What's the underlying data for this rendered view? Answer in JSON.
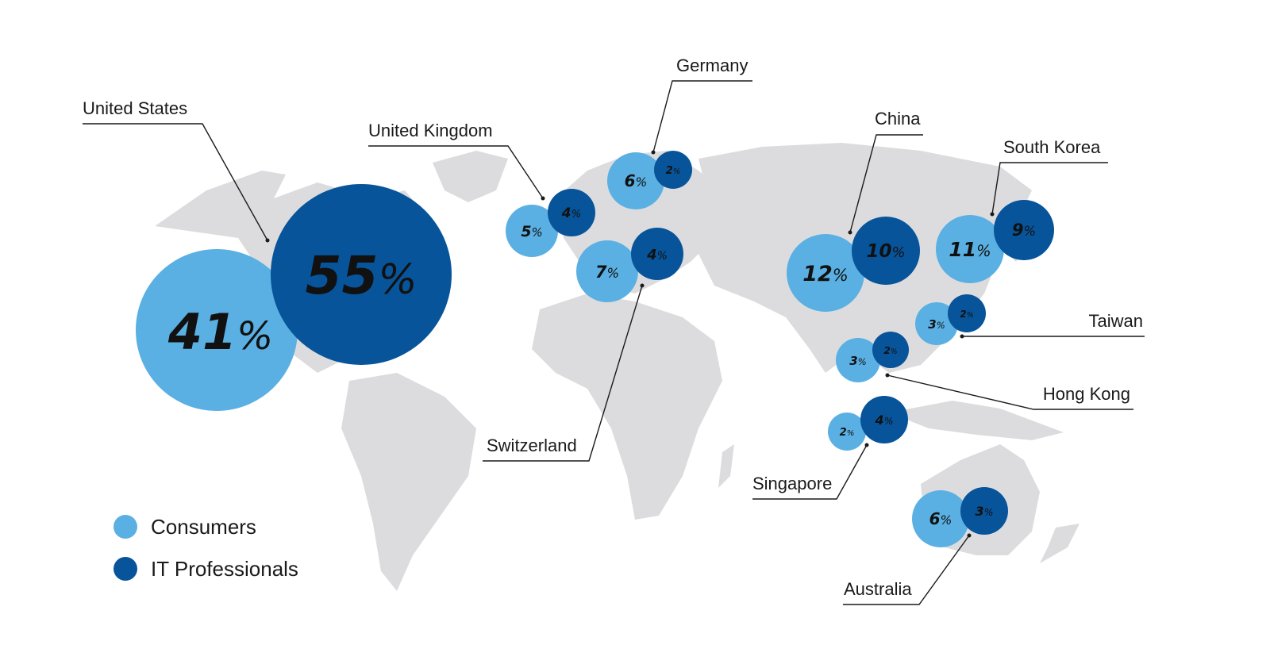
{
  "colors": {
    "consumers": "#5ab0e2",
    "it_professionals": "#07549a",
    "land": "#dcdcde"
  },
  "legend": {
    "consumers": "Consumers",
    "it_professionals": "IT Professionals"
  },
  "chart_data": {
    "type": "bubble-map",
    "series": [
      {
        "name": "Consumers"
      },
      {
        "name": "IT Professionals"
      }
    ],
    "countries": [
      {
        "name": "United States",
        "consumers": 41,
        "it_professionals": 55
      },
      {
        "name": "United Kingdom",
        "consumers": 5,
        "it_professionals": 4
      },
      {
        "name": "Germany",
        "consumers": 6,
        "it_professionals": 2
      },
      {
        "name": "Switzerland",
        "consumers": 7,
        "it_professionals": 4
      },
      {
        "name": "China",
        "consumers": 12,
        "it_professionals": 10
      },
      {
        "name": "South Korea",
        "consumers": 11,
        "it_professionals": 9
      },
      {
        "name": "Taiwan",
        "consumers": 3,
        "it_professionals": 2
      },
      {
        "name": "Hong Kong",
        "consumers": 3,
        "it_professionals": 2
      },
      {
        "name": "Singapore",
        "consumers": 2,
        "it_professionals": 4
      },
      {
        "name": "Australia",
        "consumers": 6,
        "it_professionals": 3
      }
    ]
  }
}
